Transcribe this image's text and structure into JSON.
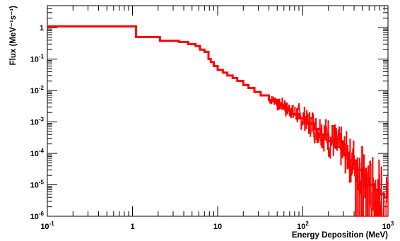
{
  "chart_data": {
    "type": "line",
    "xlabel": "Energy Deposition (MeV)",
    "ylabel": "Flux (MeV⁻¹s⁻¹)",
    "xscale": "log",
    "yscale": "log",
    "xlim": [
      0.1,
      1000
    ],
    "ylim": [
      1e-06,
      5
    ],
    "x_ticks": [
      {
        "value": 0.1,
        "base": "10",
        "exp": "-1"
      },
      {
        "value": 1,
        "base": "1",
        "exp": ""
      },
      {
        "value": 10,
        "base": "10",
        "exp": ""
      },
      {
        "value": 100,
        "base": "10",
        "exp": "2"
      },
      {
        "value": 1000,
        "base": "10",
        "exp": "3"
      }
    ],
    "y_ticks": [
      {
        "value": 1e-06,
        "base": "10",
        "exp": "-6"
      },
      {
        "value": 1e-05,
        "base": "10",
        "exp": "-5"
      },
      {
        "value": 0.0001,
        "base": "10",
        "exp": "-4"
      },
      {
        "value": 0.001,
        "base": "10",
        "exp": "-3"
      },
      {
        "value": 0.01,
        "base": "10",
        "exp": "-2"
      },
      {
        "value": 0.1,
        "base": "10",
        "exp": "-1"
      },
      {
        "value": 1,
        "base": "1",
        "exp": ""
      }
    ],
    "series_color": "#ff0000",
    "series": [
      {
        "steps": [
          [
            0.1,
            1.1
          ],
          [
            1.1,
            0.5
          ],
          [
            2.1,
            0.38
          ],
          [
            3.5,
            0.35
          ],
          [
            4.5,
            0.3
          ],
          [
            5.5,
            0.26
          ],
          [
            6.2,
            0.2
          ],
          [
            7.0,
            0.17
          ],
          [
            7.8,
            0.1
          ],
          [
            8.3,
            0.08
          ],
          [
            9.0,
            0.06
          ],
          [
            10.0,
            0.045
          ],
          [
            11.5,
            0.037
          ],
          [
            13.0,
            0.03
          ],
          [
            15.0,
            0.025
          ],
          [
            17.0,
            0.02
          ],
          [
            20.0,
            0.015
          ],
          [
            23.0,
            0.012
          ],
          [
            27.0,
            0.009
          ],
          [
            32.0,
            0.007
          ],
          [
            40.0,
            0.005
          ],
          [
            50.0,
            0.0035
          ],
          [
            62.0,
            0.0025
          ],
          [
            75.0,
            0.0018
          ],
          [
            90.0,
            0.0013
          ],
          [
            110.0,
            0.0009
          ],
          [
            135.0,
            0.0006
          ],
          [
            165.0,
            0.0004
          ],
          [
            200.0,
            0.00025
          ],
          [
            240.0,
            0.00016
          ],
          [
            290.0,
            0.0001
          ],
          [
            350.0,
            6e-05
          ],
          [
            420.0,
            3e-05
          ],
          [
            500.0,
            1.5e-05
          ],
          [
            600.0,
            1e-05
          ],
          [
            700.0,
            7e-06
          ],
          [
            800.0,
            5e-06
          ],
          [
            900.0,
            4e-06
          ],
          [
            1000.0,
            4e-06
          ]
        ]
      }
    ]
  }
}
